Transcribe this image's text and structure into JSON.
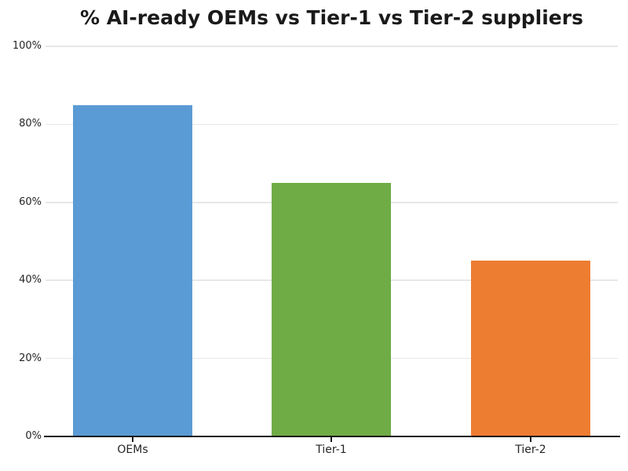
{
  "chart_data": {
    "type": "bar",
    "title": "% AI-ready OEMs vs Tier-1 vs Tier-2 suppliers",
    "categories": [
      "OEMs",
      "Tier-1",
      "Tier-2"
    ],
    "values": [
      85,
      65,
      45
    ],
    "bar_colors": [
      "#5B9BD5",
      "#6FAC46",
      "#ED7D31"
    ],
    "xlabel": "",
    "ylabel": "",
    "ylim": [
      0,
      100
    ],
    "yticks": [
      0,
      20,
      40,
      60,
      80,
      100
    ],
    "ytick_labels": [
      "0%",
      "20%",
      "40%",
      "60%",
      "80%",
      "100%"
    ],
    "grid": "horizontal-only",
    "legend": "none"
  },
  "colors": {
    "background": "#ffffff",
    "grid": "#e7e7e7",
    "axis": "#1a1a1a",
    "tick_text": "#262626",
    "title_text": "#1a1a1a"
  }
}
